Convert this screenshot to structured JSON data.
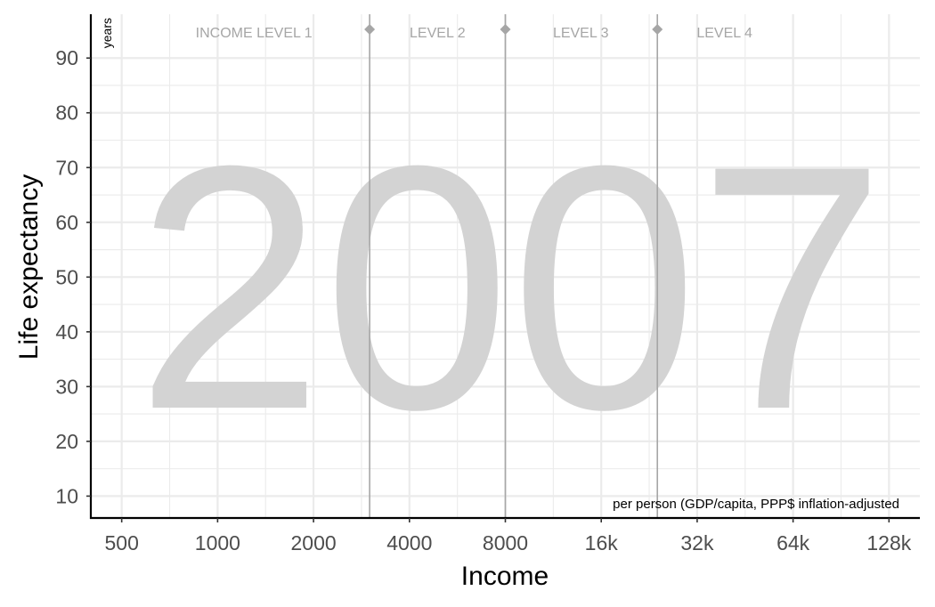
{
  "chart_data": {
    "type": "scatter",
    "title": "",
    "year_label": "2007",
    "xlabel": "Income",
    "ylabel": "Life expectancy",
    "x_unit_note": "per person (GDP/capita, PPP$ inflation-adjusted",
    "y_unit_note": "years",
    "x_scale": "log2",
    "xlim": [
      400,
      160000
    ],
    "ylim": [
      6,
      98
    ],
    "x_ticks": [
      {
        "value": 500,
        "label": "500"
      },
      {
        "value": 1000,
        "label": "1000"
      },
      {
        "value": 2000,
        "label": "2000"
      },
      {
        "value": 4000,
        "label": "4000"
      },
      {
        "value": 8000,
        "label": "8000"
      },
      {
        "value": 16000,
        "label": "16k"
      },
      {
        "value": 32000,
        "label": "32k"
      },
      {
        "value": 64000,
        "label": "64k"
      },
      {
        "value": 128000,
        "label": "128k"
      }
    ],
    "y_ticks": [
      10,
      20,
      30,
      40,
      50,
      60,
      70,
      80,
      90
    ],
    "income_thresholds": [
      3000,
      8000,
      24000
    ],
    "income_levels": [
      {
        "label": "INCOME LEVEL 1",
        "x": 1300
      },
      {
        "label": "LEVEL 2",
        "x": 4900
      },
      {
        "label": "LEVEL 3",
        "x": 13800
      },
      {
        "label": "LEVEL 4",
        "x": 39000
      }
    ],
    "points": [],
    "grid": true,
    "colors": {
      "background": "#ffffff",
      "grid": "#ebebeb",
      "axis": "#000000",
      "tick_label": "#4d4d4d",
      "year": "#d3d3d3",
      "threshold": "#a6a6a6",
      "level_label": "#a6a6a6"
    }
  }
}
